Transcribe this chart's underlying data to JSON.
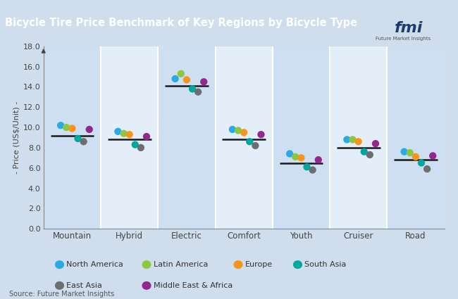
{
  "title": "Bicycle Tire Price Benchmark of Key Regions by Bicycle Type",
  "ylabel": "- Price (US¢/Unit) -",
  "source": "Source: Future Market Insights",
  "fig_bg_color": "#cfdded",
  "plot_bg_color": "#dce9f5",
  "title_bg_color": "#1b3d6e",
  "title_text_color": "#ffffff",
  "stripe_light": "#e4eef8",
  "stripe_dark": "#cddff0",
  "ylim": [
    0,
    18.0
  ],
  "yticks": [
    0.0,
    2.0,
    4.0,
    6.0,
    8.0,
    10.0,
    12.0,
    14.0,
    16.0,
    18.0
  ],
  "categories": [
    "Mountain",
    "Hybrid",
    "Electric",
    "Comfort",
    "Youth",
    "Cruiser",
    "Road"
  ],
  "regions": [
    "North America",
    "Latin America",
    "Europe",
    "South Asia",
    "East Asia",
    "Middle East & Africa"
  ],
  "region_colors": [
    "#29aae1",
    "#8dc63f",
    "#f7941d",
    "#00a79d",
    "#6d6e71",
    "#92278f"
  ],
  "data": {
    "Mountain": [
      10.2,
      10.0,
      9.9,
      8.9,
      8.6,
      9.8
    ],
    "Hybrid": [
      9.6,
      9.4,
      9.3,
      8.3,
      8.0,
      9.1
    ],
    "Electric": [
      14.8,
      15.3,
      14.7,
      13.8,
      13.5,
      14.5
    ],
    "Comfort": [
      9.8,
      9.7,
      9.5,
      8.6,
      8.2,
      9.3
    ],
    "Youth": [
      7.4,
      7.1,
      7.0,
      6.1,
      5.8,
      6.8
    ],
    "Cruiser": [
      8.8,
      8.8,
      8.6,
      7.6,
      7.3,
      8.4
    ],
    "Road": [
      7.6,
      7.5,
      7.1,
      6.5,
      5.9,
      7.2
    ]
  },
  "mean_lines": {
    "Mountain": 9.2,
    "Hybrid": 8.8,
    "Electric": 14.1,
    "Comfort": 8.8,
    "Youth": 6.5,
    "Cruiser": 8.0,
    "Road": 6.8
  }
}
